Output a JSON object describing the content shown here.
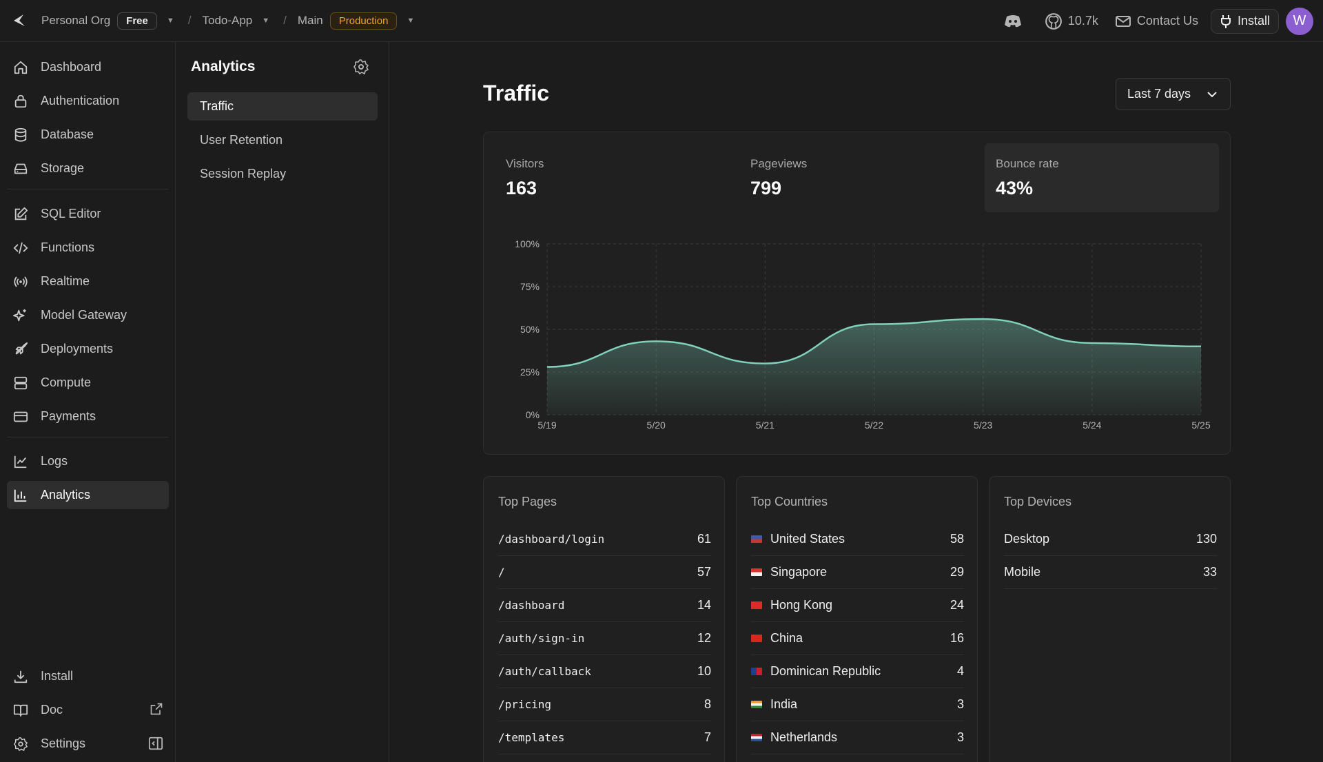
{
  "topbar": {
    "org": "Personal Org",
    "plan": "Free",
    "project": "Todo-App",
    "branch": "Main",
    "env": "Production",
    "github_stars": "10.7k",
    "contact": "Contact Us",
    "install": "Install",
    "avatar_initial": "W"
  },
  "sidebar": {
    "items": [
      {
        "label": "Dashboard",
        "icon": "home-icon"
      },
      {
        "label": "Authentication",
        "icon": "lock-icon"
      },
      {
        "label": "Database",
        "icon": "database-icon"
      },
      {
        "label": "Storage",
        "icon": "storage-icon"
      },
      {
        "label": "SQL Editor",
        "icon": "edit-icon"
      },
      {
        "label": "Functions",
        "icon": "code-icon"
      },
      {
        "label": "Realtime",
        "icon": "broadcast-icon"
      },
      {
        "label": "Model Gateway",
        "icon": "sparkles-icon"
      },
      {
        "label": "Deployments",
        "icon": "rocket-icon"
      },
      {
        "label": "Compute",
        "icon": "server-icon"
      },
      {
        "label": "Payments",
        "icon": "card-icon"
      },
      {
        "label": "Logs",
        "icon": "line-chart-icon"
      },
      {
        "label": "Analytics",
        "icon": "bar-chart-icon"
      }
    ],
    "bottom": [
      {
        "label": "Install",
        "icon": "download-icon"
      },
      {
        "label": "Doc",
        "icon": "book-icon"
      },
      {
        "label": "Settings",
        "icon": "gear-icon"
      }
    ]
  },
  "subnav": {
    "title": "Analytics",
    "items": [
      "Traffic",
      "User Retention",
      "Session Replay"
    ]
  },
  "main": {
    "title": "Traffic",
    "range": "Last 7 days",
    "stats": [
      {
        "label": "Visitors",
        "value": "163"
      },
      {
        "label": "Pageviews",
        "value": "799"
      },
      {
        "label": "Bounce rate",
        "value": "43%"
      }
    ]
  },
  "chart_data": {
    "type": "area",
    "categories": [
      "5/19",
      "5/20",
      "5/21",
      "5/22",
      "5/23",
      "5/24",
      "5/25"
    ],
    "values": [
      28,
      43,
      30,
      53,
      56,
      42,
      40
    ],
    "ylim": [
      0,
      100
    ],
    "yticks": [
      "0%",
      "25%",
      "50%",
      "75%",
      "100%"
    ],
    "grid": true,
    "color": "#7fd1b9"
  },
  "top_pages": {
    "title": "Top Pages",
    "rows": [
      {
        "name": "/dashboard/login",
        "value": "61"
      },
      {
        "name": "/",
        "value": "57"
      },
      {
        "name": "/dashboard",
        "value": "14"
      },
      {
        "name": "/auth/sign-in",
        "value": "12"
      },
      {
        "name": "/auth/callback",
        "value": "10"
      },
      {
        "name": "/pricing",
        "value": "8"
      },
      {
        "name": "/templates",
        "value": "7"
      }
    ]
  },
  "top_countries": {
    "title": "Top Countries",
    "rows": [
      {
        "name": "United States",
        "value": "58",
        "flag": "us-flag-icon"
      },
      {
        "name": "Singapore",
        "value": "29",
        "flag": "sg-flag-icon"
      },
      {
        "name": "Hong Kong",
        "value": "24",
        "flag": "hk-flag-icon"
      },
      {
        "name": "China",
        "value": "16",
        "flag": "cn-flag-icon"
      },
      {
        "name": "Dominican Republic",
        "value": "4",
        "flag": "do-flag-icon"
      },
      {
        "name": "India",
        "value": "3",
        "flag": "in-flag-icon"
      },
      {
        "name": "Netherlands",
        "value": "3",
        "flag": "nl-flag-icon"
      }
    ]
  },
  "top_devices": {
    "title": "Top Devices",
    "rows": [
      {
        "name": "Desktop",
        "value": "130"
      },
      {
        "name": "Mobile",
        "value": "33"
      }
    ]
  }
}
